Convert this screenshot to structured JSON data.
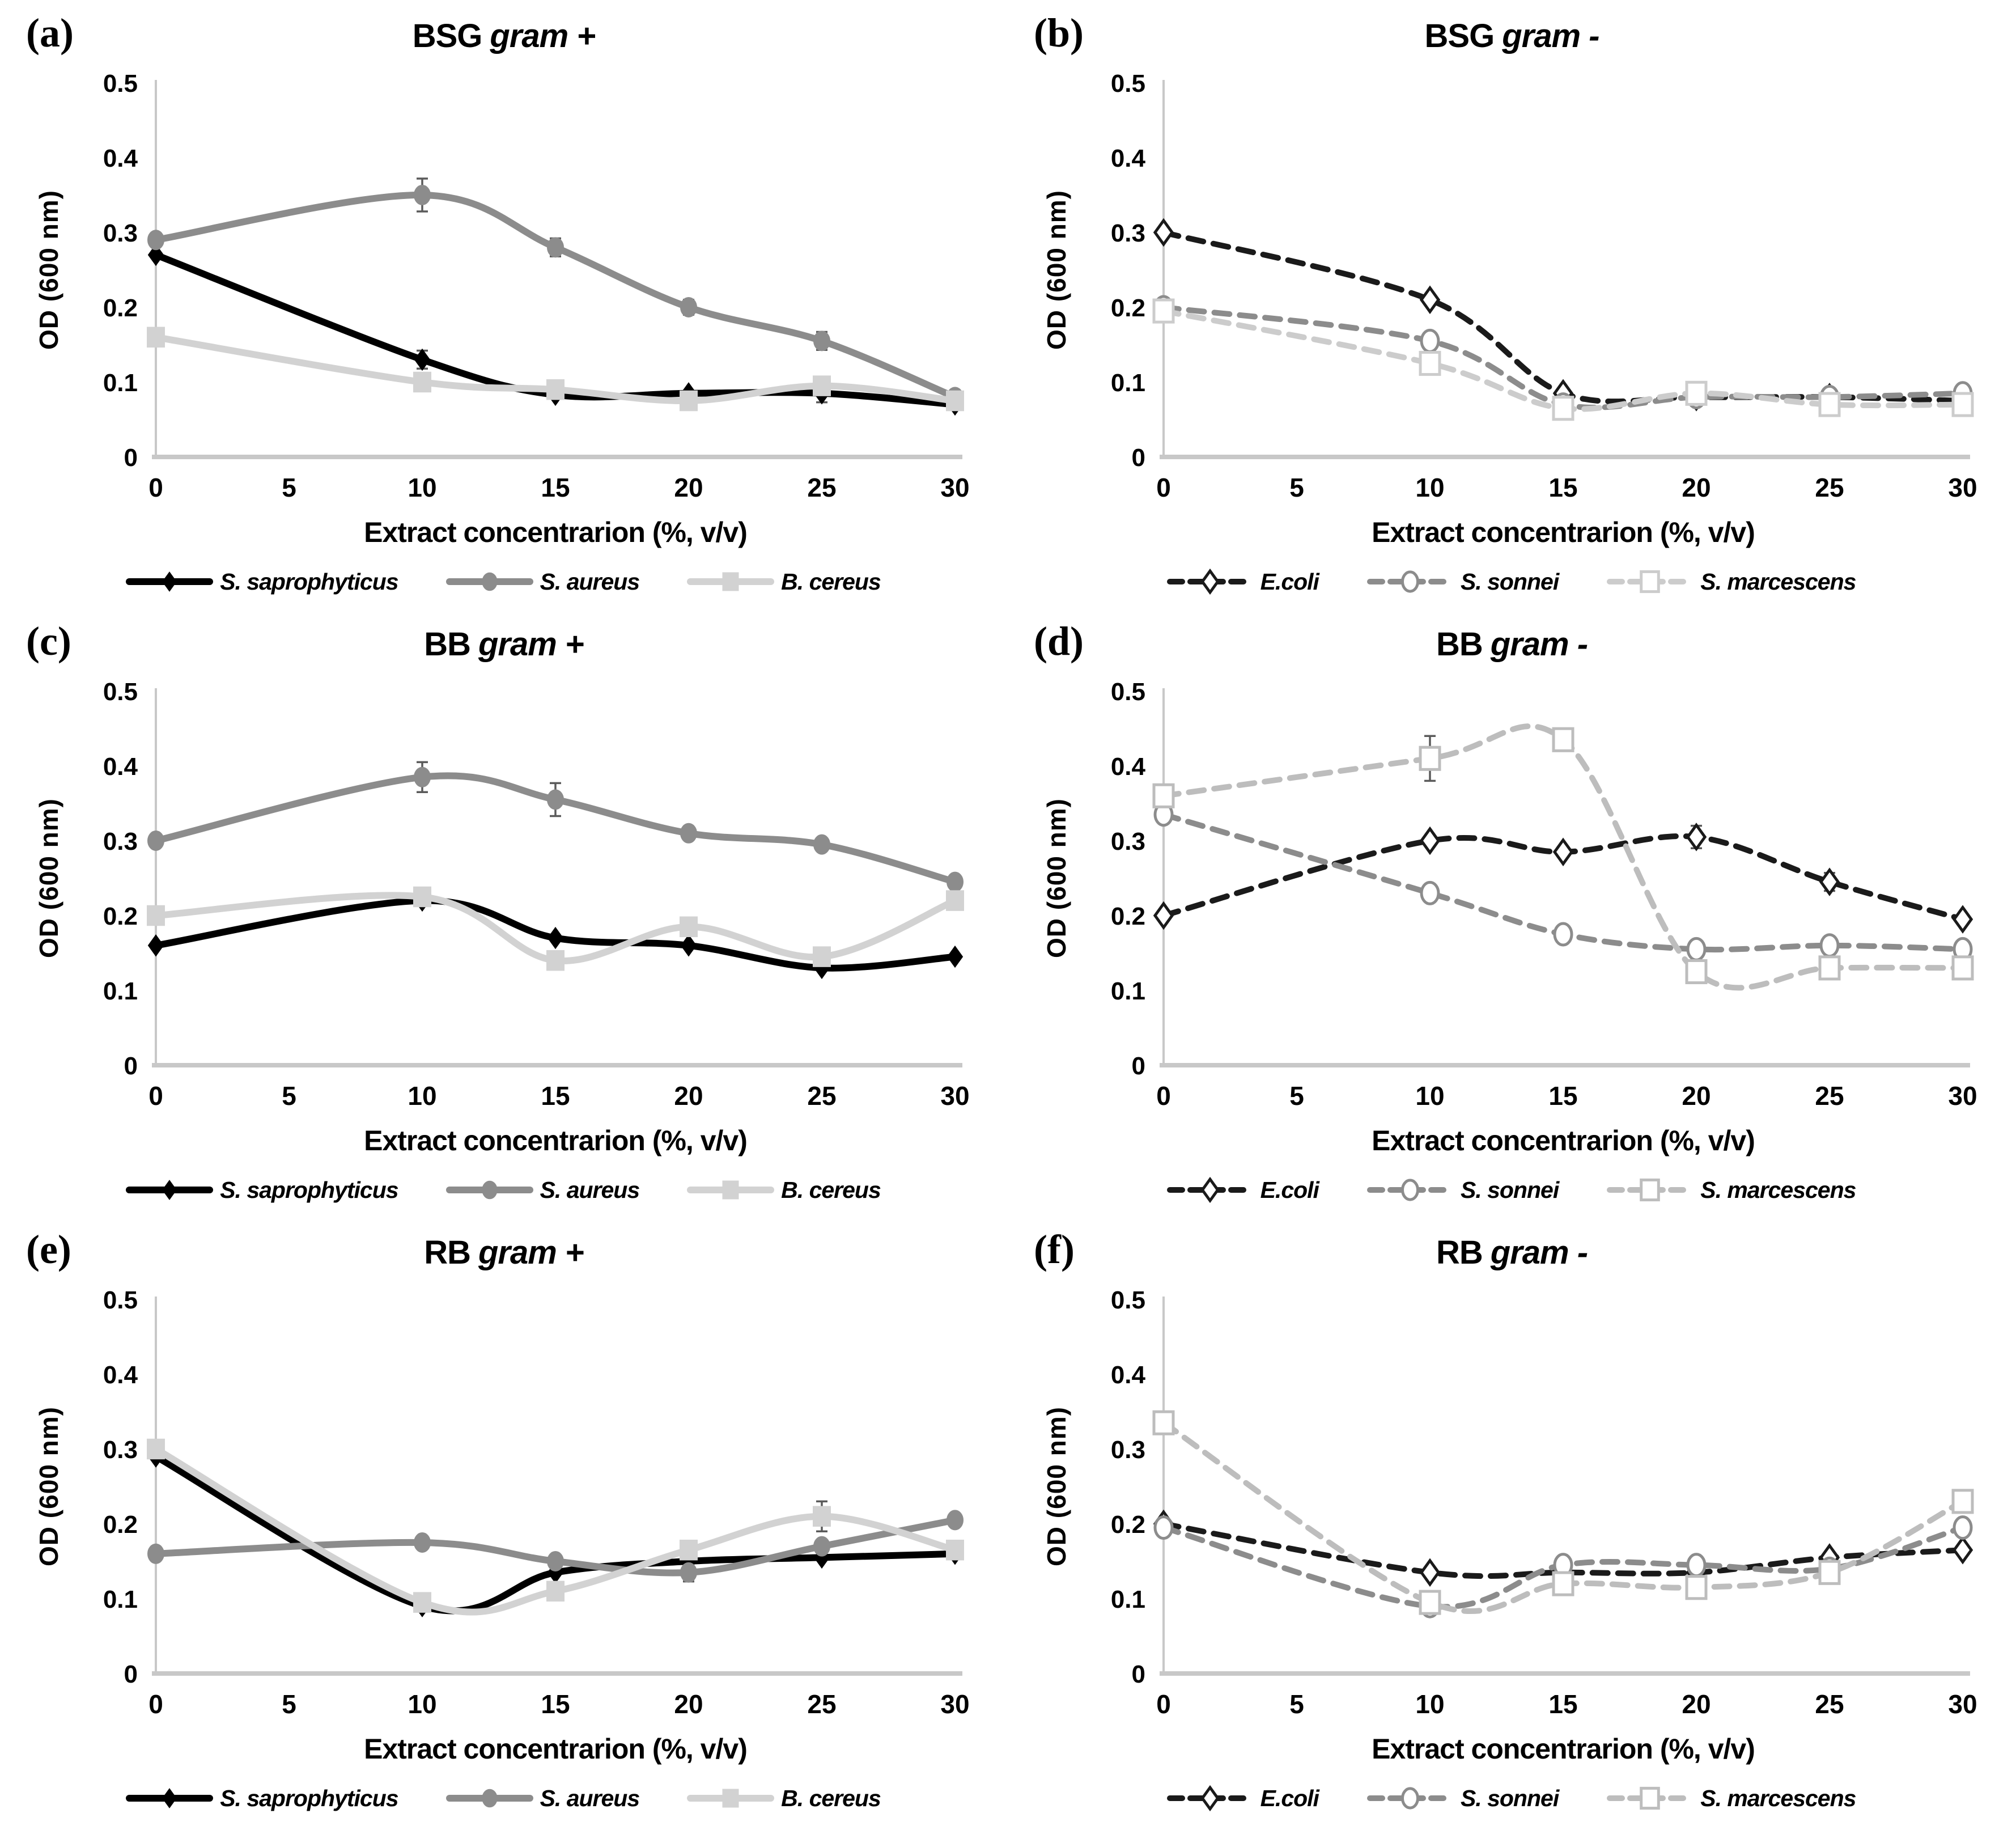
{
  "figure": {
    "background": "#ffffff",
    "axis_color": "#c8c8c8",
    "error_bar_color": "#5a5a5a",
    "x_axis_label": "Extract concentrarion (%, v/v)",
    "y_axis_label": "OD (600 nm)",
    "x_ticks": [
      0,
      5,
      10,
      15,
      20,
      25,
      30
    ],
    "y_ticks": [
      0,
      0.1,
      0.2,
      0.3,
      0.4,
      0.5
    ]
  },
  "chart_data": [
    {
      "panel_label": "(a)",
      "title_name": "BSG",
      "title_gram": "gram +",
      "type": "line",
      "xlabel": "Extract concentrarion (%, v/v)",
      "ylabel": "OD (600 nm)",
      "xlim": [
        0,
        30
      ],
      "ylim": [
        0,
        0.5
      ],
      "x_ticks": [
        0,
        5,
        10,
        15,
        20,
        25,
        30
      ],
      "y_ticks": [
        0,
        0.1,
        0.2,
        0.3,
        0.4,
        0.5
      ],
      "x": [
        0,
        10,
        15,
        20,
        25,
        30
      ],
      "legend_position": "bottom",
      "grid": false,
      "series": [
        {
          "name": "S. saprophyticus",
          "color": "#000000",
          "marker": "diamond",
          "marker_fill": "filled",
          "dash": false,
          "values": [
            0.27,
            0.13,
            0.083,
            0.085,
            0.085,
            0.07
          ],
          "errors": [
            0,
            0.012,
            0,
            0,
            0.012,
            0
          ]
        },
        {
          "name": "S. aureus",
          "color": "#8c8c8c",
          "marker": "circle",
          "marker_fill": "filled",
          "dash": false,
          "values": [
            0.29,
            0.35,
            0.28,
            0.2,
            0.155,
            0.08
          ],
          "errors": [
            0,
            0.022,
            0.012,
            0.01,
            0.012,
            0
          ]
        },
        {
          "name": "B. cereus",
          "color": "#d2d2d2",
          "marker": "square",
          "marker_fill": "filled",
          "dash": false,
          "values": [
            0.16,
            0.1,
            0.09,
            0.075,
            0.095,
            0.075
          ],
          "errors": [
            0,
            0,
            0,
            0,
            0,
            0
          ]
        }
      ]
    },
    {
      "panel_label": "(b)",
      "title_name": "BSG",
      "title_gram": "gram -",
      "type": "line",
      "xlabel": "Extract concentrarion (%, v/v)",
      "ylabel": "OD (600 nm)",
      "xlim": [
        0,
        30
      ],
      "ylim": [
        0,
        0.5
      ],
      "x_ticks": [
        0,
        5,
        10,
        15,
        20,
        25,
        30
      ],
      "y_ticks": [
        0,
        0.1,
        0.2,
        0.3,
        0.4,
        0.5
      ],
      "x": [
        0,
        10,
        15,
        20,
        25,
        30
      ],
      "legend_position": "bottom",
      "grid": false,
      "series": [
        {
          "name": "E.coli",
          "color": "#1a1a1a",
          "marker": "diamond",
          "marker_fill": "open",
          "dash": true,
          "values": [
            0.3,
            0.21,
            0.085,
            0.08,
            0.08,
            0.075
          ],
          "errors": [
            0,
            0,
            0,
            0,
            0,
            0
          ]
        },
        {
          "name": "S. sonnei",
          "color": "#8c8c8c",
          "marker": "circle",
          "marker_fill": "open",
          "dash": true,
          "values": [
            0.2,
            0.155,
            0.07,
            0.08,
            0.08,
            0.085
          ],
          "errors": [
            0,
            0,
            0,
            0,
            0,
            0
          ]
        },
        {
          "name": "S. marcescens",
          "color": "#cccccc",
          "marker": "square",
          "marker_fill": "open",
          "dash": true,
          "values": [
            0.195,
            0.125,
            0.065,
            0.085,
            0.07,
            0.07
          ],
          "errors": [
            0,
            0,
            0,
            0,
            0,
            0
          ]
        }
      ]
    },
    {
      "panel_label": "(c)",
      "title_name": "BB",
      "title_gram": "gram +",
      "type": "line",
      "xlabel": "Extract concentrarion (%, v/v)",
      "ylabel": "OD (600 nm)",
      "xlim": [
        0,
        30
      ],
      "ylim": [
        0,
        0.5
      ],
      "x_ticks": [
        0,
        5,
        10,
        15,
        20,
        25,
        30
      ],
      "y_ticks": [
        0,
        0.1,
        0.2,
        0.3,
        0.4,
        0.5
      ],
      "x": [
        0,
        10,
        15,
        20,
        25,
        30
      ],
      "legend_position": "bottom",
      "grid": false,
      "series": [
        {
          "name": "S. saprophyticus",
          "color": "#000000",
          "marker": "diamond",
          "marker_fill": "filled",
          "dash": false,
          "values": [
            0.16,
            0.22,
            0.17,
            0.16,
            0.13,
            0.145
          ],
          "errors": [
            0,
            0,
            0,
            0,
            0,
            0
          ]
        },
        {
          "name": "S. aureus",
          "color": "#8c8c8c",
          "marker": "circle",
          "marker_fill": "filled",
          "dash": false,
          "values": [
            0.3,
            0.385,
            0.355,
            0.31,
            0.295,
            0.245
          ],
          "errors": [
            0,
            0.02,
            0.022,
            0.008,
            0.008,
            0.008
          ]
        },
        {
          "name": "B. cereus",
          "color": "#d2d2d2",
          "marker": "square",
          "marker_fill": "filled",
          "dash": false,
          "values": [
            0.2,
            0.225,
            0.14,
            0.185,
            0.145,
            0.22
          ],
          "errors": [
            0,
            0,
            0,
            0,
            0,
            0
          ]
        }
      ]
    },
    {
      "panel_label": "(d)",
      "title_name": "BB",
      "title_gram": "gram -",
      "type": "line",
      "xlabel": "Extract concentrarion (%, v/v)",
      "ylabel": "OD (600 nm)",
      "xlim": [
        0,
        30
      ],
      "ylim": [
        0,
        0.5
      ],
      "x_ticks": [
        0,
        5,
        10,
        15,
        20,
        25,
        30
      ],
      "y_ticks": [
        0,
        0.1,
        0.2,
        0.3,
        0.4,
        0.5
      ],
      "x": [
        0,
        10,
        15,
        20,
        25,
        30
      ],
      "legend_position": "bottom",
      "grid": false,
      "series": [
        {
          "name": "E.coli",
          "color": "#1a1a1a",
          "marker": "diamond",
          "marker_fill": "open",
          "dash": true,
          "values": [
            0.2,
            0.3,
            0.285,
            0.305,
            0.245,
            0.195
          ],
          "errors": [
            0,
            0,
            0,
            0.015,
            0.012,
            0
          ]
        },
        {
          "name": "S. sonnei",
          "color": "#8c8c8c",
          "marker": "circle",
          "marker_fill": "open",
          "dash": true,
          "values": [
            0.335,
            0.23,
            0.175,
            0.155,
            0.16,
            0.155
          ],
          "errors": [
            0,
            0,
            0,
            0,
            0,
            0
          ]
        },
        {
          "name": "S. marcescens",
          "color": "#bdbdbd",
          "marker": "square",
          "marker_fill": "open",
          "dash": true,
          "values": [
            0.36,
            0.41,
            0.435,
            0.125,
            0.13,
            0.13
          ],
          "errors": [
            0,
            0.03,
            0.012,
            0,
            0,
            0
          ]
        }
      ]
    },
    {
      "panel_label": "(e)",
      "title_name": "RB",
      "title_gram": "gram +",
      "type": "line",
      "xlabel": "Extract concentrarion (%, v/v)",
      "ylabel": "OD (600 nm)",
      "xlim": [
        0,
        30
      ],
      "ylim": [
        0,
        0.5
      ],
      "x_ticks": [
        0,
        5,
        10,
        15,
        20,
        25,
        30
      ],
      "y_ticks": [
        0,
        0.1,
        0.2,
        0.3,
        0.4,
        0.5
      ],
      "x": [
        0,
        10,
        15,
        20,
        25,
        30
      ],
      "legend_position": "bottom",
      "grid": false,
      "series": [
        {
          "name": "S. saprophyticus",
          "color": "#000000",
          "marker": "diamond",
          "marker_fill": "filled",
          "dash": false,
          "values": [
            0.29,
            0.09,
            0.135,
            0.15,
            0.155,
            0.16
          ],
          "errors": [
            0,
            0,
            0,
            0,
            0,
            0
          ]
        },
        {
          "name": "S. aureus",
          "color": "#8c8c8c",
          "marker": "circle",
          "marker_fill": "filled",
          "dash": false,
          "values": [
            0.16,
            0.175,
            0.15,
            0.135,
            0.17,
            0.205
          ],
          "errors": [
            0,
            0,
            0,
            0.012,
            0,
            0
          ]
        },
        {
          "name": "B. cereus",
          "color": "#d2d2d2",
          "marker": "square",
          "marker_fill": "filled",
          "dash": false,
          "values": [
            0.3,
            0.095,
            0.11,
            0.165,
            0.21,
            0.165
          ],
          "errors": [
            0,
            0,
            0,
            0,
            0.02,
            0
          ]
        }
      ]
    },
    {
      "panel_label": "(f)",
      "title_name": "RB",
      "title_gram": "gram -",
      "type": "line",
      "xlabel": "Extract concentrarion (%, v/v)",
      "ylabel": "OD (600 nm)",
      "xlim": [
        0,
        30
      ],
      "ylim": [
        0,
        0.5
      ],
      "x_ticks": [
        0,
        5,
        10,
        15,
        20,
        25,
        30
      ],
      "y_ticks": [
        0,
        0.1,
        0.2,
        0.3,
        0.4,
        0.5
      ],
      "x": [
        0,
        10,
        15,
        20,
        25,
        30
      ],
      "legend_position": "bottom",
      "grid": false,
      "series": [
        {
          "name": "E.coli",
          "color": "#1a1a1a",
          "marker": "diamond",
          "marker_fill": "open",
          "dash": true,
          "values": [
            0.2,
            0.135,
            0.135,
            0.135,
            0.155,
            0.165
          ],
          "errors": [
            0,
            0,
            0,
            0,
            0,
            0
          ]
        },
        {
          "name": "S. sonnei",
          "color": "#8c8c8c",
          "marker": "circle",
          "marker_fill": "open",
          "dash": true,
          "values": [
            0.195,
            0.09,
            0.145,
            0.145,
            0.14,
            0.195
          ],
          "errors": [
            0,
            0,
            0,
            0,
            0,
            0
          ]
        },
        {
          "name": "S. marcescens",
          "color": "#bdbdbd",
          "marker": "square",
          "marker_fill": "open",
          "dash": true,
          "values": [
            0.335,
            0.095,
            0.12,
            0.115,
            0.135,
            0.23
          ],
          "errors": [
            0,
            0,
            0,
            0,
            0,
            0
          ]
        }
      ]
    }
  ]
}
